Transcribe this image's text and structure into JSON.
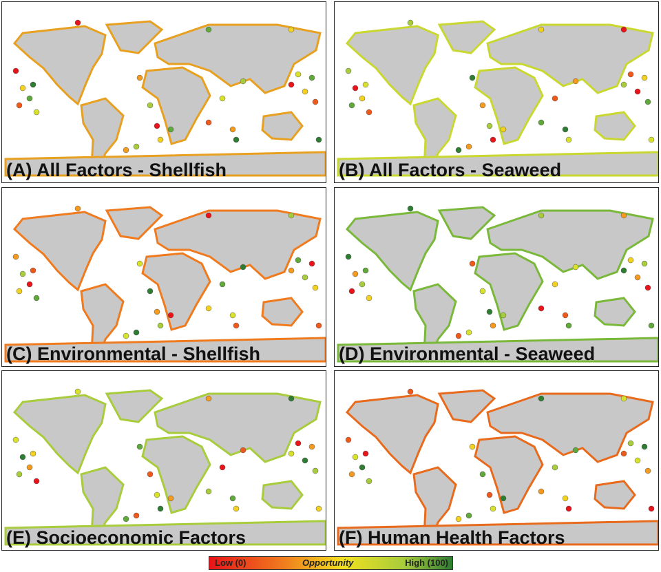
{
  "panels": [
    {
      "label": "(A) All Factors - Shellfish"
    },
    {
      "label": "(B) All Factors - Seaweed"
    },
    {
      "label": "(C) Environmental - Shellfish"
    },
    {
      "label": "(D) Environmental - Seaweed"
    },
    {
      "label": "(E) Socioeconomic Factors"
    },
    {
      "label": "(F) Human Health Factors"
    }
  ],
  "legend": {
    "low": "Low (0)",
    "title": "Opportunity",
    "high": "High (100)"
  }
}
